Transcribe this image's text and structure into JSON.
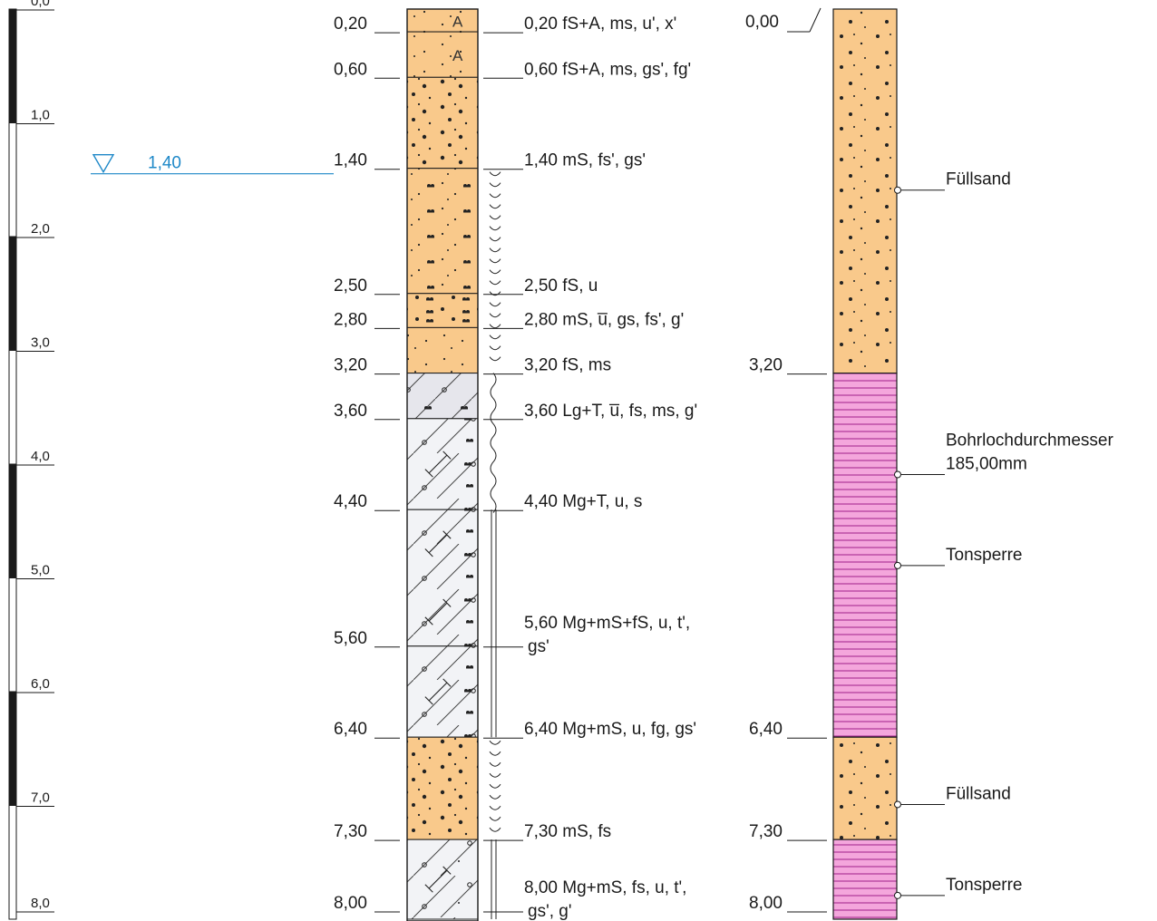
{
  "scale": {
    "unit_depth_m": 8.0,
    "labels": [
      "0,0",
      "1,0",
      "2,0",
      "3,0",
      "4,0",
      "5,0",
      "6,0",
      "7,0",
      "8,0"
    ],
    "values": [
      0,
      1,
      2,
      3,
      4,
      5,
      6,
      7,
      8
    ]
  },
  "groundwater": {
    "depth": 1.4,
    "label": "1,40"
  },
  "profile": {
    "layers": [
      {
        "top": 0.0,
        "bottom": 0.2,
        "fill": "fill-sand",
        "symbol": "A",
        "depth_label": "0,20",
        "description": [
          "fS+A, ms, u', x'"
        ]
      },
      {
        "top": 0.2,
        "bottom": 0.6,
        "fill": "fill-sand",
        "symbol": "A",
        "depth_label": "0,60",
        "description": [
          "fS+A, ms, gs', fg'"
        ]
      },
      {
        "top": 0.6,
        "bottom": 1.4,
        "fill": "fill-msand",
        "symbol": "",
        "depth_label": "1,40",
        "description": [
          "mS, fs', gs'"
        ]
      },
      {
        "top": 1.4,
        "bottom": 2.5,
        "fill": "fill-fsand",
        "symbol": "",
        "depth_label": "2,50",
        "description": [
          "fS, u"
        ]
      },
      {
        "top": 2.5,
        "bottom": 2.8,
        "fill": "fill-msand2",
        "symbol": "",
        "depth_label": "2,80",
        "description": [
          "mS, u̅, gs, fs', g'"
        ]
      },
      {
        "top": 2.8,
        "bottom": 3.2,
        "fill": "fill-fsand2",
        "symbol": "",
        "depth_label": "3,20",
        "description": [
          "fS, ms"
        ]
      },
      {
        "top": 3.2,
        "bottom": 3.6,
        "fill": "fill-lg",
        "symbol": "",
        "depth_label": "3,60",
        "description": [
          "Lg+T, u̅, fs, ms, g'"
        ]
      },
      {
        "top": 3.6,
        "bottom": 4.4,
        "fill": "fill-mg",
        "symbol": "I",
        "depth_label": "4,40",
        "description": [
          "Mg+T, u, s"
        ]
      },
      {
        "top": 4.4,
        "bottom": 5.6,
        "fill": "fill-mg",
        "symbol": "I",
        "depth_label": "5,60",
        "description": [
          "Mg+mS+fS, u, t',",
          "gs'"
        ]
      },
      {
        "top": 5.6,
        "bottom": 6.4,
        "fill": "fill-mg",
        "symbol": "I",
        "depth_label": "6,40",
        "description": [
          "Mg+mS, u, fg, gs'"
        ]
      },
      {
        "top": 6.4,
        "bottom": 7.3,
        "fill": "fill-msand",
        "symbol": "",
        "depth_label": "7,30",
        "description": [
          "mS, fs"
        ]
      },
      {
        "top": 7.3,
        "bottom": 8.0,
        "fill": "fill-mg2",
        "symbol": "I",
        "depth_label": "8,00",
        "description": [
          "Mg+mS, fs, u, t',",
          "gs', g'"
        ]
      }
    ],
    "consistency_marks": [
      {
        "top": 1.4,
        "bottom": 3.2,
        "type": "soft"
      },
      {
        "top": 3.2,
        "bottom": 4.4,
        "type": "wavy"
      },
      {
        "top": 4.4,
        "bottom": 6.4,
        "type": "double"
      },
      {
        "top": 6.4,
        "bottom": 7.3,
        "type": "soft"
      },
      {
        "top": 7.3,
        "bottom": 8.0,
        "type": "double"
      }
    ]
  },
  "well": {
    "start_label": "0,00",
    "sections": [
      {
        "top": 0.0,
        "bottom": 3.2,
        "type": "sand",
        "depth_label": "3,20"
      },
      {
        "top": 3.2,
        "bottom": 6.4,
        "type": "clay",
        "depth_label": "6,40"
      },
      {
        "top": 6.4,
        "bottom": 7.3,
        "type": "sand",
        "depth_label": "7,30"
      },
      {
        "top": 7.3,
        "bottom": 8.0,
        "type": "clay",
        "depth_label": "8,00"
      }
    ],
    "annotations": [
      {
        "depth": 1.48,
        "lines": [
          "Füllsand"
        ]
      },
      {
        "depth": 3.98,
        "lines": [
          "Bohrlochdurchmesser",
          "185,00mm"
        ]
      },
      {
        "depth": 4.78,
        "lines": [
          "Tonsperre"
        ]
      },
      {
        "depth": 6.88,
        "lines": [
          "Füllsand"
        ]
      },
      {
        "depth": 7.68,
        "lines": [
          "Tonsperre"
        ]
      }
    ]
  },
  "colors": {
    "sand": "#f9c98b",
    "clay": "#f4a6dc",
    "clay_line": "#a0208a",
    "gray": "#e9e9ee",
    "gray_light": "#f2f3f6",
    "water": "#1e88c8",
    "ink": "#1a1a1a"
  }
}
